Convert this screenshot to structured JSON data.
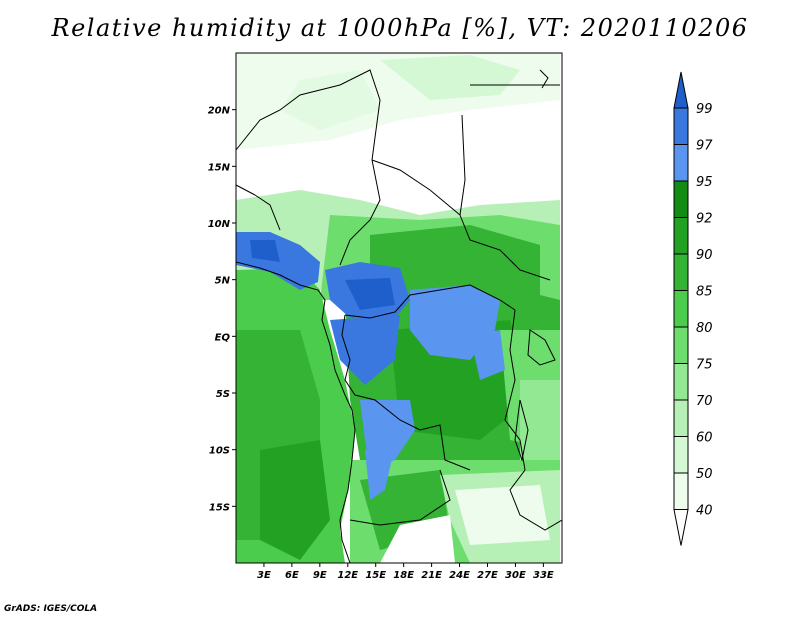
{
  "title": "Relative humidity at 1000hPa [%], VT: 2020110206",
  "footer": "GrADS: IGES/COLA",
  "map": {
    "lat_labels": [
      "20N",
      "15N",
      "10N",
      "5N",
      "EQ",
      "5S",
      "10S",
      "15S"
    ],
    "lat_values": [
      20,
      15,
      10,
      5,
      0,
      -5,
      -10,
      -15
    ],
    "lon_labels": [
      "3E",
      "6E",
      "9E",
      "12E",
      "15E",
      "18E",
      "21E",
      "24E",
      "27E",
      "30E",
      "33E"
    ],
    "lon_values": [
      3,
      6,
      9,
      12,
      15,
      18,
      21,
      24,
      27,
      30,
      33
    ],
    "lon_range": [
      0,
      35
    ],
    "lat_range": [
      -20,
      25
    ]
  },
  "colorbar": {
    "levels": [
      "99",
      "97",
      "95",
      "92",
      "90",
      "85",
      "80",
      "75",
      "70",
      "60",
      "50",
      "40"
    ],
    "colors": [
      "#1e5fcc",
      "#3a78e0",
      "#5a96f0",
      "#148c14",
      "#23a123",
      "#34b334",
      "#4ccc4c",
      "#6ddd6d",
      "#93e893",
      "#b6f0b6",
      "#d4f7d4",
      "#eefcee"
    ]
  }
}
